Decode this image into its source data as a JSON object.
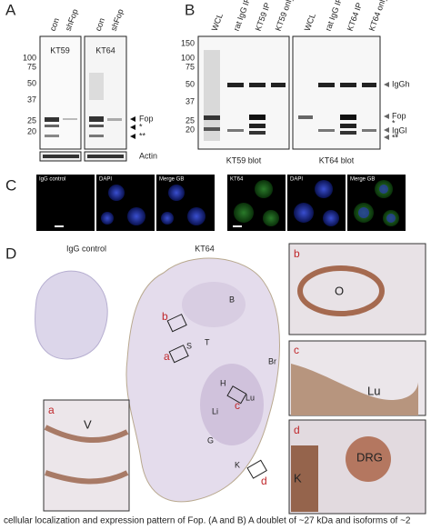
{
  "panel_a": {
    "label": "A",
    "lanes": [
      "con",
      "shFop",
      "con",
      "shFop"
    ],
    "blots": [
      "KT59",
      "KT64"
    ],
    "markers": [
      "100",
      "75",
      "50",
      "37",
      "25",
      "20"
    ],
    "bands": [
      "Fop",
      "*",
      "**"
    ],
    "loading": "Actin"
  },
  "panel_b": {
    "label": "B",
    "lanes": [
      "WCL",
      "rat IgG IP",
      "KT59 IP",
      "KT59 only",
      "WCL",
      "rat IgG IP",
      "KT64 IP",
      "KT64 only"
    ],
    "markers": [
      "150",
      "100",
      "75",
      "50",
      "37",
      "25",
      "20"
    ],
    "bands": [
      "IgGh",
      "Fop",
      "*",
      "IgGl",
      "**"
    ],
    "blots": [
      "KT59 blot",
      "KT64 blot"
    ]
  },
  "panel_c": {
    "label": "C",
    "titles": [
      "IgG control",
      "DAPI",
      "Merge GB",
      "KT64",
      "DAPI",
      "Merge GB"
    ]
  },
  "panel_d": {
    "label": "D",
    "headings": [
      "IgG control",
      "KT64"
    ],
    "organs": [
      "B",
      "T",
      "S",
      "Br",
      "H",
      "Lu",
      "Li",
      "G",
      "K"
    ],
    "box_letters": [
      "a",
      "b",
      "c",
      "d"
    ],
    "insets": [
      {
        "letter": "b",
        "labels": [
          "O"
        ]
      },
      {
        "letter": "c",
        "labels": [
          "Lu"
        ]
      },
      {
        "letter": "a",
        "labels": [
          "V"
        ]
      },
      {
        "letter": "d",
        "labels": [
          "K",
          "DRG"
        ]
      }
    ]
  },
  "caption": "cellular localization and expression pattern of Fop. (A and B) A doublet of ~27 kDa and isoforms of ~2"
}
